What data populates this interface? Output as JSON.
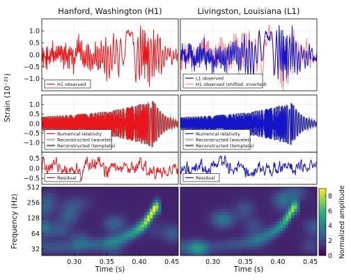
{
  "chart_data": [
    {
      "panel": "H1-observed",
      "type": "line",
      "title": "Hanford, Washington (H1)",
      "ylim": [
        -1.5,
        1.5
      ],
      "yticks": [
        -1.0,
        -0.5,
        0.0,
        0.5,
        1.0
      ],
      "ytick_labels": [
        "−1.0",
        "−0.5",
        "0.0",
        "0.5",
        "1.0"
      ],
      "xlim": [
        0.25,
        0.46
      ],
      "legend": "bottom-left",
      "series": [
        {
          "name": "H1 observed",
          "color": "#e8161b",
          "x": [
            0.25,
            0.27,
            0.29,
            0.31,
            0.33,
            0.35,
            0.36,
            0.37,
            0.38,
            0.39,
            0.395,
            0.4,
            0.405,
            0.41,
            0.415,
            0.42,
            0.425,
            0.43,
            0.44,
            0.46
          ],
          "y": [
            0.0,
            0.3,
            -0.3,
            0.4,
            -0.5,
            0.6,
            -0.6,
            0.7,
            -0.8,
            0.9,
            -0.9,
            1.0,
            -1.0,
            1.2,
            -1.2,
            1.1,
            -0.7,
            0.6,
            -0.2,
            0.0
          ]
        }
      ]
    },
    {
      "panel": "L1-observed",
      "type": "line",
      "title": "Livingston, Louisiana (L1)",
      "ylim": [
        -1.5,
        1.5
      ],
      "xlim": [
        0.25,
        0.46
      ],
      "legend": "bottom-left",
      "series": [
        {
          "name": "L1 observed",
          "color": "#1414c8",
          "x": [
            0.25,
            0.27,
            0.29,
            0.31,
            0.33,
            0.35,
            0.36,
            0.37,
            0.38,
            0.39,
            0.395,
            0.4,
            0.405,
            0.41,
            0.415,
            0.42,
            0.425,
            0.43,
            0.44,
            0.46
          ],
          "y": [
            0.0,
            0.3,
            -0.3,
            0.4,
            -0.5,
            0.6,
            -0.6,
            0.7,
            -0.8,
            0.9,
            -0.9,
            1.0,
            -1.0,
            1.2,
            -1.2,
            1.1,
            -0.7,
            0.6,
            -0.2,
            0.0
          ]
        },
        {
          "name": "H1 observed (shifted, inverted)",
          "color": "#f08c8c",
          "x": [
            0.25,
            0.27,
            0.29,
            0.31,
            0.33,
            0.35,
            0.36,
            0.37,
            0.38,
            0.39,
            0.395,
            0.4,
            0.405,
            0.41,
            0.415,
            0.42,
            0.425,
            0.43,
            0.44,
            0.46
          ],
          "y": [
            0.0,
            0.3,
            -0.3,
            0.4,
            -0.5,
            0.6,
            -0.6,
            0.7,
            -0.8,
            0.9,
            -0.9,
            1.0,
            -1.0,
            1.2,
            -1.2,
            1.1,
            -0.7,
            0.6,
            -0.2,
            0.0
          ]
        }
      ]
    },
    {
      "panel": "H1-reconstructed",
      "type": "line",
      "ylabel": "Strain (10⁻²¹)",
      "ylim": [
        -1.5,
        1.5
      ],
      "yticks": [
        -1.0,
        -0.5,
        0.0,
        0.5,
        1.0
      ],
      "ytick_labels": [
        "−1.0",
        "−0.5",
        "0.0",
        "0.5",
        "1.0"
      ],
      "xlim": [
        0.25,
        0.46
      ],
      "legend": "bottom-left",
      "series": [
        {
          "name": "Numerical relativity",
          "color": "#e8161b"
        },
        {
          "name": "Reconstructed (wavelet)",
          "color": "#c8c8c8"
        },
        {
          "name": "Reconstructed (template)",
          "color": "#808080"
        }
      ]
    },
    {
      "panel": "L1-reconstructed",
      "type": "line",
      "ylim": [
        -1.5,
        1.5
      ],
      "xlim": [
        0.25,
        0.46
      ],
      "legend": "bottom-left",
      "series": [
        {
          "name": "Numerical relativity",
          "color": "#1414c8"
        },
        {
          "name": "Reconstructed (wavelet)",
          "color": "#c8c8c8"
        },
        {
          "name": "Reconstructed (template)",
          "color": "#808080"
        }
      ]
    },
    {
      "panel": "H1-residual",
      "type": "line",
      "ylim": [
        -0.8,
        0.8
      ],
      "yticks": [
        -0.5,
        0.0,
        0.5
      ],
      "ytick_labels": [
        "−0.5",
        "0.0",
        "0.5"
      ],
      "xlim": [
        0.25,
        0.46
      ],
      "legend": "bottom-left",
      "series": [
        {
          "name": "Residual",
          "color": "#e8161b"
        }
      ]
    },
    {
      "panel": "L1-residual",
      "type": "line",
      "ylim": [
        -0.8,
        0.8
      ],
      "xlim": [
        0.25,
        0.46
      ],
      "legend": "bottom-left",
      "series": [
        {
          "name": "Residual",
          "color": "#1414c8"
        }
      ]
    },
    {
      "panel": "H1-spectrogram",
      "type": "heatmap",
      "xlabel": "Time (s)",
      "ylabel": "Frequency (Hz)",
      "xlim": [
        0.25,
        0.46
      ],
      "xticks": [
        0.3,
        0.35,
        0.4,
        0.45
      ],
      "xtick_labels": [
        "0.30",
        "0.35",
        "0.40",
        "0.45"
      ],
      "ylim": [
        24,
        512
      ],
      "yscale": "log",
      "yticks": [
        32,
        64,
        128,
        256,
        512
      ],
      "ytick_labels": [
        "32",
        "64",
        "128",
        "256",
        "512"
      ],
      "chirp_track": {
        "t": [
          0.3,
          0.34,
          0.37,
          0.39,
          0.405,
          0.415,
          0.425
        ],
        "f": [
          35,
          40,
          50,
          65,
          90,
          130,
          210
        ],
        "amplitude": [
          1.5,
          2,
          3,
          4,
          6,
          8,
          9
        ]
      }
    },
    {
      "panel": "L1-spectrogram",
      "type": "heatmap",
      "xlabel": "Time (s)",
      "xlim": [
        0.25,
        0.46
      ],
      "xticks": [
        0.3,
        0.35,
        0.4,
        0.45
      ],
      "xtick_labels": [
        "0.30",
        "0.35",
        "0.40",
        "0.45"
      ],
      "ylim": [
        24,
        512
      ],
      "yscale": "log",
      "chirp_track": {
        "t": [
          0.3,
          0.34,
          0.37,
          0.39,
          0.405,
          0.415,
          0.425
        ],
        "f": [
          35,
          40,
          50,
          65,
          90,
          130,
          210
        ],
        "amplitude": [
          1.0,
          1.5,
          2,
          3,
          4,
          6,
          7
        ]
      }
    },
    {
      "panel": "colorbar",
      "type": "colorbar",
      "label": "Normalized amplitude",
      "range": [
        0,
        9
      ],
      "ticks": [
        0,
        2,
        4,
        6,
        8
      ],
      "tick_labels": [
        "0",
        "2",
        "4",
        "6",
        "8"
      ],
      "colormap": [
        "#440154",
        "#414487",
        "#2a788e",
        "#22a884",
        "#7ad151",
        "#fde725"
      ]
    }
  ]
}
